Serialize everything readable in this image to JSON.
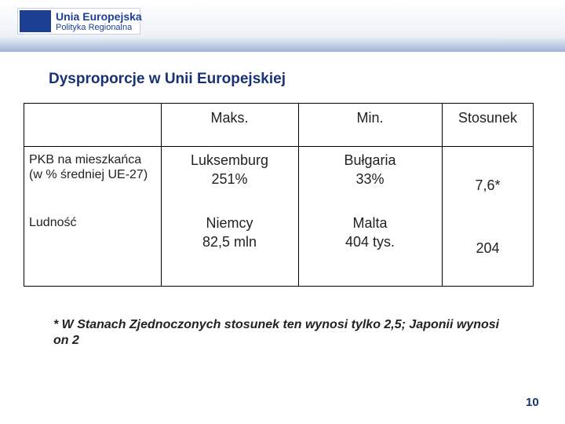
{
  "header": {
    "logo_title": "Unia Europejska",
    "logo_subtitle": "Polityka Regionalna"
  },
  "title": "Dysproporcje w Unii Europejskiej",
  "table": {
    "columns": [
      "",
      "Maks.",
      "Min.",
      "Stosunek"
    ],
    "rows": [
      [
        "PKB na mieszkańca (w % średniej UE-27)",
        "Luksemburg\n251%",
        "Bułgaria\n33%",
        "7,6*"
      ],
      [
        "Ludność",
        "Niemcy\n82,5 mln",
        "Malta\n404 tys.",
        "204"
      ]
    ]
  },
  "footnote": "* W Stanach Zjednoczonych stosunek ten wynosi tylko 2,5; Japonii wynosi on 2",
  "page_number": "10"
}
